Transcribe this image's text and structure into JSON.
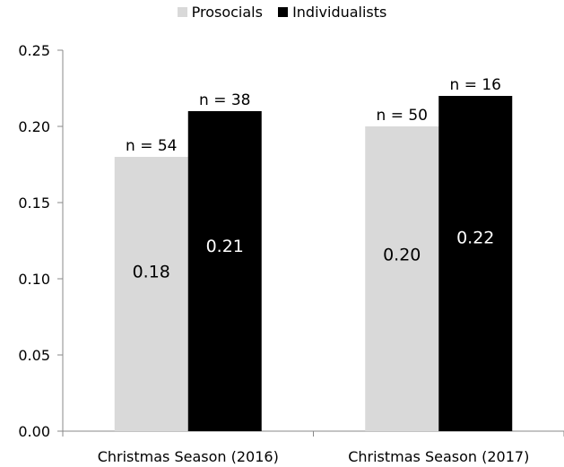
{
  "chart_data": {
    "type": "bar",
    "categories": [
      "Christmas Season (2016)",
      "Christmas Season (2017)"
    ],
    "series": [
      {
        "name": "Prosocials",
        "color": "#d9d9d9",
        "values": [
          0.18,
          0.2
        ],
        "value_labels": [
          "0.18",
          "0.20"
        ],
        "n_labels": [
          "n = 54",
          "n = 50"
        ]
      },
      {
        "name": "Individualists",
        "color": "#000000",
        "values": [
          0.21,
          0.22
        ],
        "value_labels": [
          "0.21",
          "0.22"
        ],
        "n_labels": [
          "n = 38",
          "n = 16"
        ]
      }
    ],
    "ylim": [
      0,
      0.25
    ],
    "yticks": [
      "0.00",
      "0.05",
      "0.10",
      "0.15",
      "0.20",
      "0.25"
    ],
    "legend_position": "top-center",
    "grid": false
  }
}
